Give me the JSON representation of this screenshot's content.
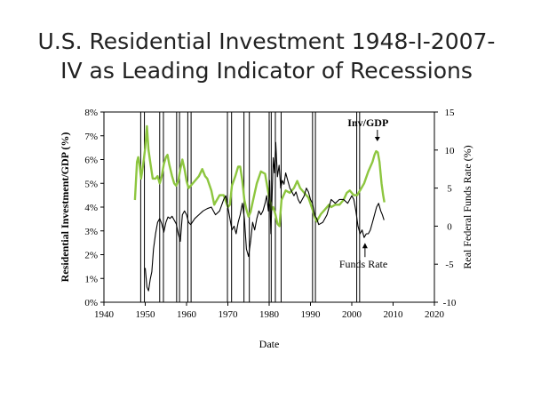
{
  "title_lines": [
    "U.S. Residential Investment 1948-I-2007-",
    "IV as Leading Indicator of Recessions"
  ],
  "colors": {
    "investment": "#8dc63f",
    "funds_rate": "#000000",
    "recession_lines": "#000000"
  },
  "chart_data": {
    "type": "line",
    "title": "U.S. Residential Investment 1948-I-2007-IV as Leading Indicator of Recessions",
    "xlabel": "Date",
    "ylabel": "Residential Investment/GDP (%)",
    "y2label": "Real Federal Funds Rate (%)",
    "xlim": [
      1940,
      2020
    ],
    "ylim": [
      0,
      8
    ],
    "y2lim": [
      -10,
      15
    ],
    "x_ticks": [
      "1940",
      "1950",
      "1960",
      "1970",
      "1980",
      "1990",
      "2000",
      "2010",
      "2020"
    ],
    "y_ticks": [
      "0%",
      "1%",
      "2%",
      "3%",
      "4%",
      "5%",
      "6%",
      "7%",
      "8%"
    ],
    "y2_ticks": [
      "-10",
      "-5",
      "0",
      "5",
      "10",
      "15"
    ],
    "grid": false,
    "recession_years": [
      1948.9,
      1949.8,
      1953.5,
      1954.4,
      1957.6,
      1958.3,
      1960.3,
      1961.1,
      1969.9,
      1970.9,
      1973.9,
      1975.2,
      1980.0,
      1980.5,
      1981.5,
      1982.9,
      1990.5,
      1991.2,
      2001.2,
      2001.9
    ],
    "annotations": [
      {
        "text": "Inv/GDP",
        "series": "Residential Investment/GDP",
        "x": 2004.8,
        "y": 7.4
      },
      {
        "text": "Funds Rate",
        "series": "Real Federal Funds Rate",
        "x": 2002.8,
        "y2": -5
      }
    ],
    "series": [
      {
        "name": "Residential Investment/GDP",
        "axis": "left",
        "x": [
          1947.5,
          1948.0,
          1948.3,
          1948.6,
          1949.0,
          1949.5,
          1950.0,
          1950.4,
          1950.8,
          1951.2,
          1951.8,
          1952.5,
          1953.0,
          1953.5,
          1954.0,
          1954.5,
          1955.0,
          1955.4,
          1955.8,
          1956.5,
          1957.0,
          1957.5,
          1958.0,
          1958.5,
          1959.0,
          1959.5,
          1960.0,
          1960.5,
          1961.0,
          1962.0,
          1963.0,
          1963.8,
          1964.5,
          1965.0,
          1966.0,
          1966.7,
          1967.0,
          1968.0,
          1969.0,
          1970.0,
          1970.5,
          1971.0,
          1971.8,
          1972.5,
          1973.0,
          1973.5,
          1974.0,
          1974.5,
          1975.0,
          1975.5,
          1976.0,
          1977.0,
          1978.0,
          1979.0,
          1980.0,
          1980.6,
          1981.0,
          1981.5,
          1982.0,
          1982.5,
          1983.0,
          1984.0,
          1985.0,
          1986.0,
          1986.8,
          1987.5,
          1988.5,
          1989.5,
          1990.5,
          1991.0,
          1991.5,
          1992.5,
          1993.5,
          1994.5,
          1995.0,
          1996.0,
          1997.0,
          1998.0,
          1998.8,
          1999.5,
          2000.5,
          2001.3,
          2002.0,
          2003.0,
          2004.0,
          2005.0,
          2005.5,
          2005.9,
          2006.3,
          2006.7,
          2007.2,
          2007.6,
          2007.9
        ],
        "y": [
          4.3,
          5.9,
          6.1,
          5.8,
          5.2,
          5.8,
          6.5,
          7.4,
          6.4,
          5.9,
          5.2,
          5.2,
          5.3,
          5.0,
          5.3,
          5.8,
          6.1,
          6.2,
          5.8,
          5.3,
          5.0,
          4.9,
          5.1,
          5.6,
          6.0,
          5.6,
          5.1,
          4.8,
          4.9,
          5.1,
          5.3,
          5.6,
          5.3,
          5.2,
          4.7,
          4.1,
          4.2,
          4.5,
          4.5,
          4.0,
          4.1,
          4.9,
          5.3,
          5.7,
          5.7,
          5.1,
          4.3,
          3.9,
          3.6,
          3.8,
          4.2,
          5.0,
          5.5,
          5.4,
          4.4,
          3.9,
          4.0,
          3.7,
          3.3,
          3.2,
          4.3,
          4.7,
          4.6,
          4.8,
          5.1,
          4.8,
          4.6,
          4.4,
          3.9,
          3.6,
          3.4,
          3.7,
          3.9,
          4.1,
          4.0,
          4.1,
          4.1,
          4.3,
          4.6,
          4.7,
          4.5,
          4.5,
          4.7,
          5.0,
          5.5,
          5.9,
          6.2,
          6.35,
          6.3,
          5.9,
          5.0,
          4.5,
          4.2
        ]
      },
      {
        "name": "Real Federal Funds Rate",
        "axis": "right",
        "x": [
          1950.0,
          1950.4,
          1950.8,
          1951.2,
          1951.6,
          1952.0,
          1952.5,
          1953.0,
          1953.5,
          1954.0,
          1954.5,
          1955.0,
          1955.5,
          1956.0,
          1956.5,
          1957.0,
          1957.5,
          1958.0,
          1958.5,
          1959.0,
          1959.5,
          1960.0,
          1960.5,
          1961.0,
          1962.0,
          1963.0,
          1964.0,
          1965.0,
          1966.0,
          1967.0,
          1968.0,
          1969.0,
          1969.5,
          1970.0,
          1970.5,
          1971.0,
          1971.5,
          1972.0,
          1972.5,
          1973.0,
          1973.5,
          1974.0,
          1974.5,
          1975.0,
          1975.5,
          1976.0,
          1976.5,
          1977.0,
          1977.5,
          1978.0,
          1978.5,
          1979.0,
          1979.4,
          1979.8,
          1980.1,
          1980.4,
          1980.7,
          1981.0,
          1981.3,
          1981.6,
          1982.0,
          1982.4,
          1982.8,
          1983.2,
          1983.6,
          1984.0,
          1984.5,
          1985.0,
          1985.5,
          1986.0,
          1986.5,
          1987.0,
          1987.5,
          1988.0,
          1988.5,
          1989.0,
          1989.5,
          1990.0,
          1990.5,
          1991.0,
          1991.5,
          1992.0,
          1993.0,
          1994.0,
          1995.0,
          1996.0,
          1997.0,
          1998.0,
          1999.0,
          2000.0,
          2000.5,
          2001.0,
          2001.5,
          2002.0,
          2002.5,
          2003.0,
          2003.5,
          2004.0,
          2004.5,
          2005.0,
          2005.5,
          2006.0,
          2006.5,
          2007.0,
          2007.4,
          2007.8
        ],
        "y": [
          -5.5,
          -8.0,
          -8.5,
          -7.0,
          -6.0,
          -3.0,
          -1.0,
          0.5,
          1.0,
          0.3,
          -0.8,
          0.5,
          1.2,
          1.0,
          1.3,
          0.8,
          0.3,
          -1.0,
          -2.0,
          1.5,
          2.0,
          1.5,
          0.5,
          0.2,
          1.0,
          1.5,
          2.0,
          2.3,
          2.5,
          1.5,
          2.0,
          3.5,
          4.0,
          2.5,
          1.0,
          -0.5,
          0.0,
          -1.0,
          0.5,
          1.5,
          3.0,
          1.0,
          -3.0,
          -4.0,
          -2.0,
          0.5,
          -0.5,
          1.0,
          2.0,
          1.5,
          2.0,
          3.0,
          4.0,
          2.0,
          6.0,
          -1.0,
          4.0,
          9.0,
          7.0,
          11.0,
          6.5,
          8.0,
          5.0,
          6.0,
          5.5,
          7.0,
          6.0,
          5.0,
          4.5,
          4.0,
          4.5,
          3.5,
          3.0,
          3.5,
          4.0,
          5.0,
          4.5,
          3.5,
          3.0,
          1.5,
          1.0,
          0.2,
          0.5,
          1.5,
          3.5,
          3.0,
          3.5,
          3.5,
          3.0,
          4.0,
          3.5,
          2.0,
          0.0,
          -1.0,
          -0.5,
          -1.5,
          -1.0,
          -1.0,
          -0.5,
          0.5,
          1.5,
          2.5,
          3.0,
          2.0,
          1.5,
          0.8
        ]
      }
    ]
  }
}
